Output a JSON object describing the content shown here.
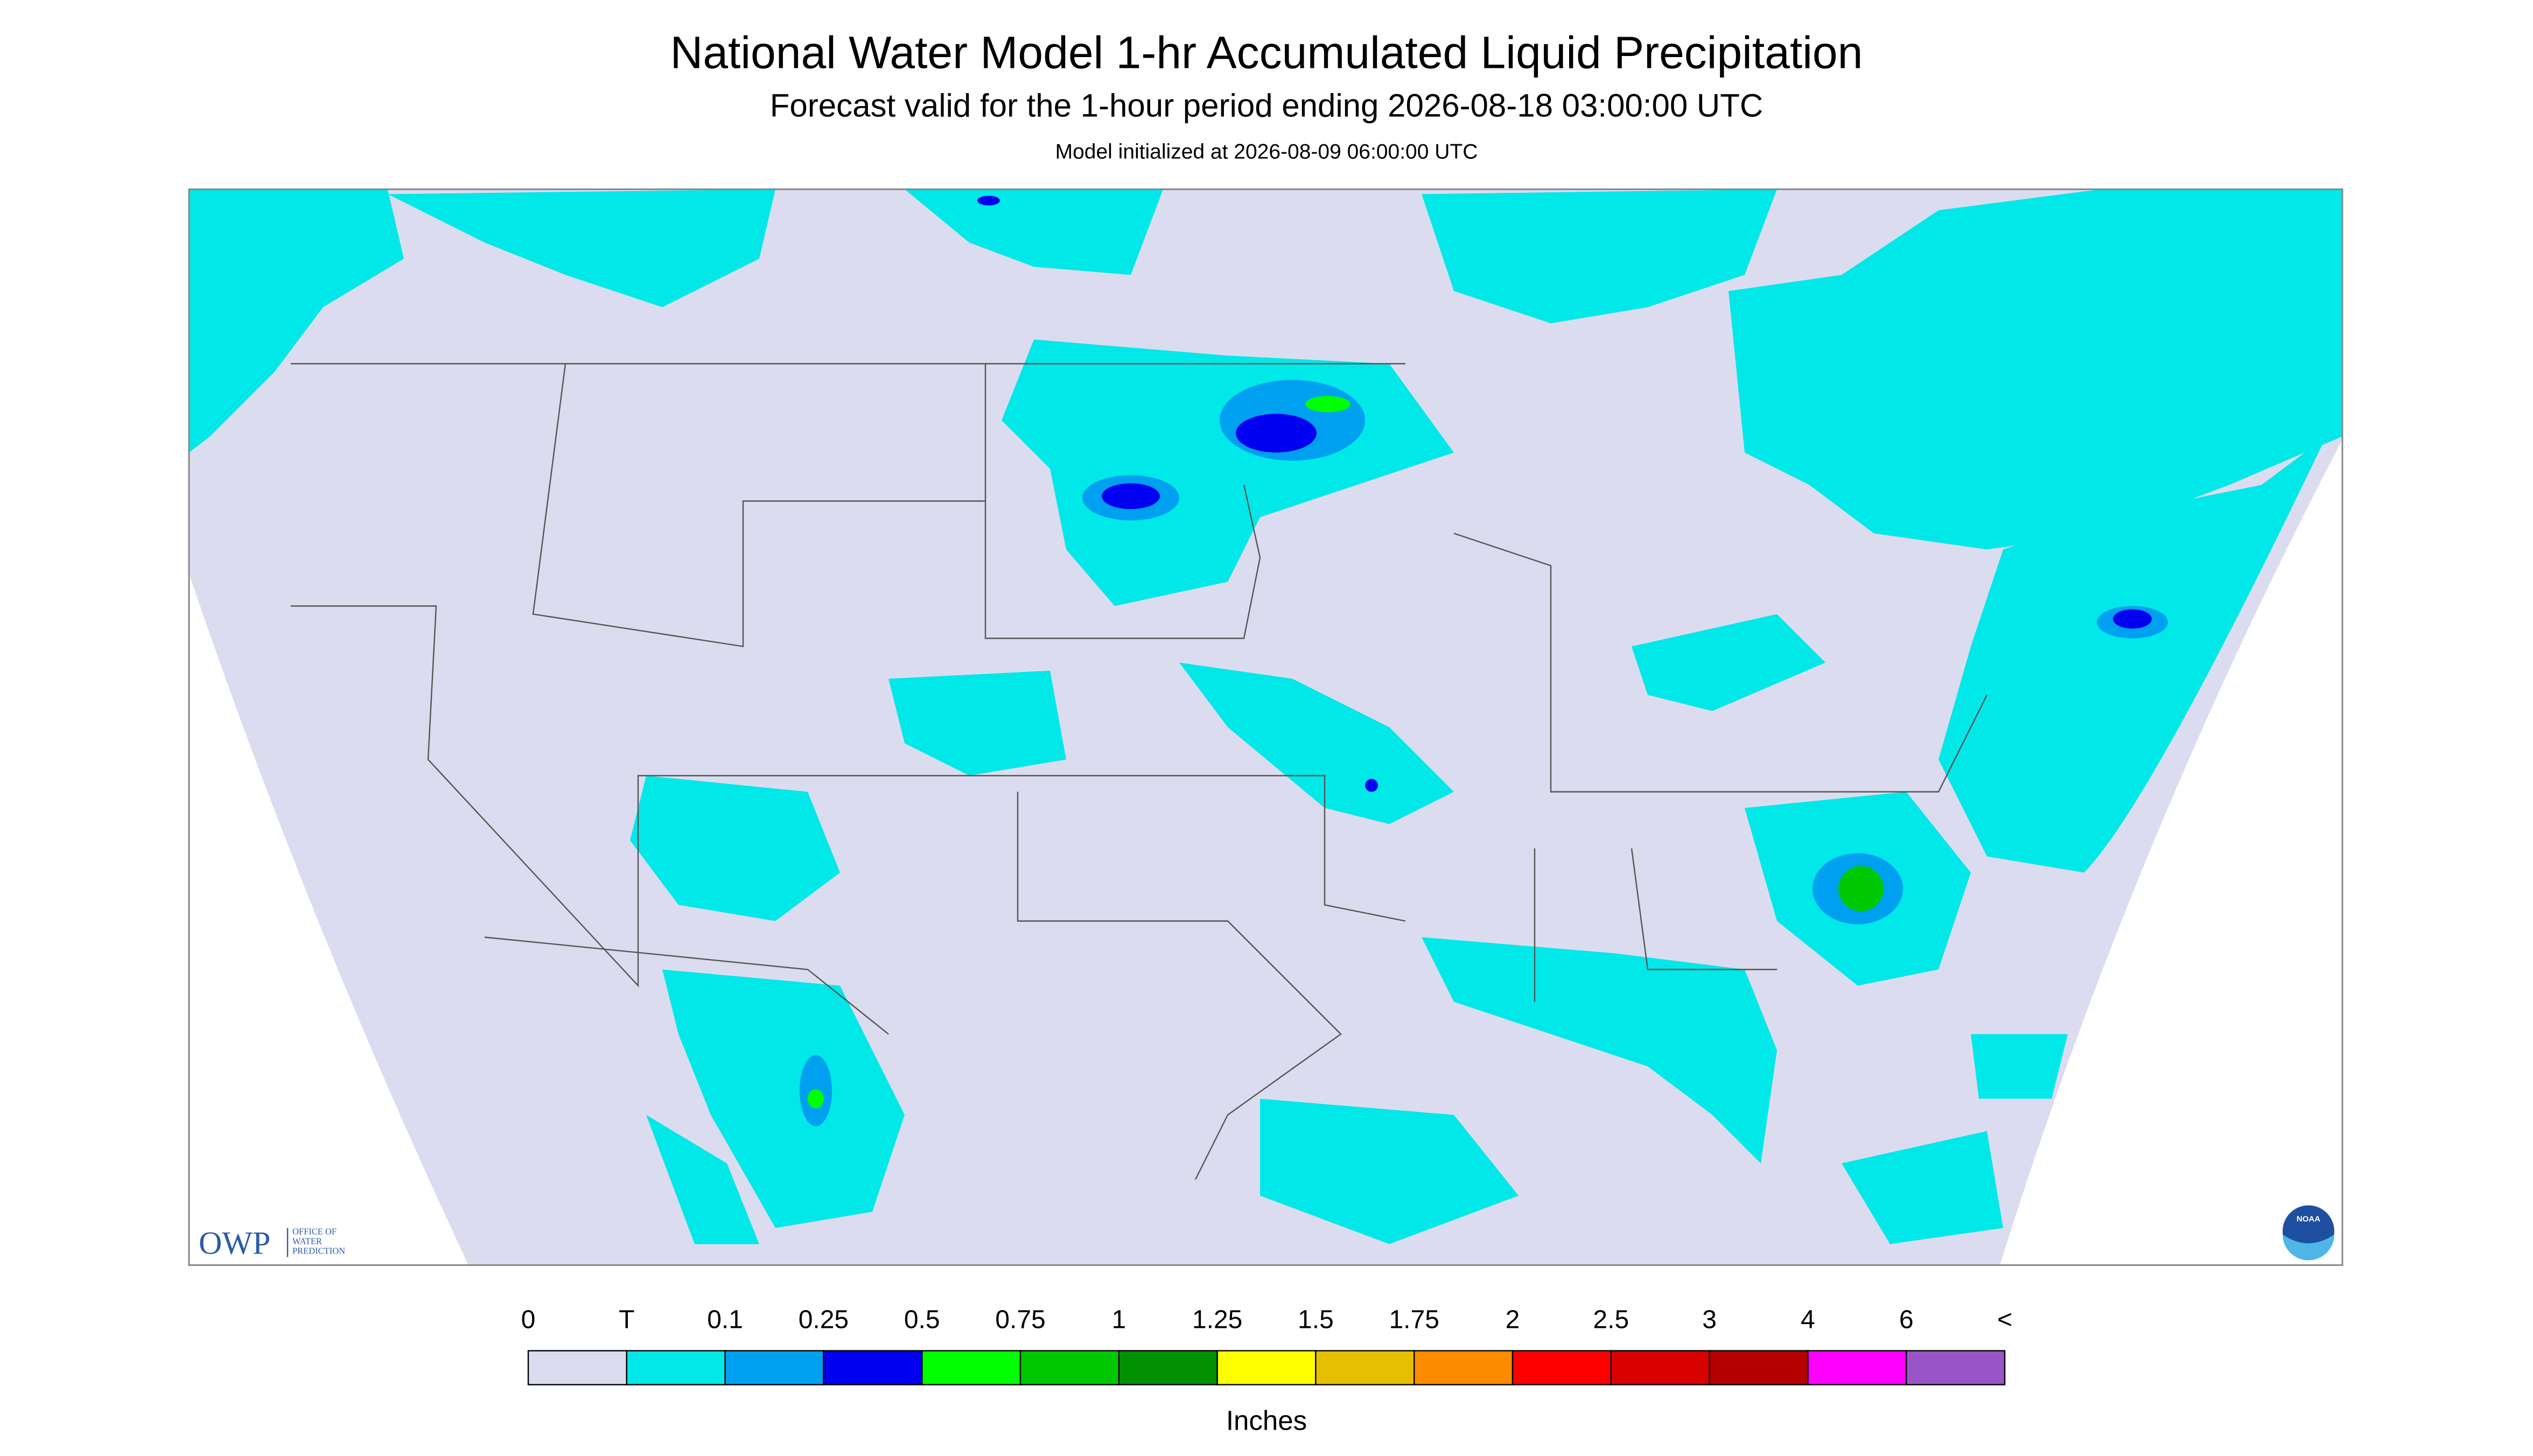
{
  "header": {
    "title": "National Water Model 1-hr Accumulated Liquid Precipitation",
    "subtitle": "Forecast valid for the 1-hour period ending 2026-08-18 03:00:00 UTC",
    "note": "Model initialized at 2026-08-09 06:00:00 UTC"
  },
  "logos": {
    "owp": "OWP",
    "owp_text": [
      "OFFICE OF",
      "WATER",
      "PREDICTION"
    ],
    "noaa": "NOAA"
  },
  "colorbar": {
    "labels": [
      "0",
      "T",
      "0.1",
      "0.25",
      "0.5",
      "0.75",
      "1",
      "1.25",
      "1.5",
      "1.75",
      "2",
      "2.5",
      "3",
      "4",
      "6",
      "<"
    ],
    "colors": [
      "#dcdcf0",
      "#00e8e8",
      "#00a0f0",
      "#0000f0",
      "#00ff00",
      "#00c800",
      "#009000",
      "#ffff00",
      "#e6c000",
      "#ff8c00",
      "#ff0000",
      "#d80000",
      "#b40000",
      "#ff00ff",
      "#9955c8"
    ],
    "unit": "Inches"
  }
}
